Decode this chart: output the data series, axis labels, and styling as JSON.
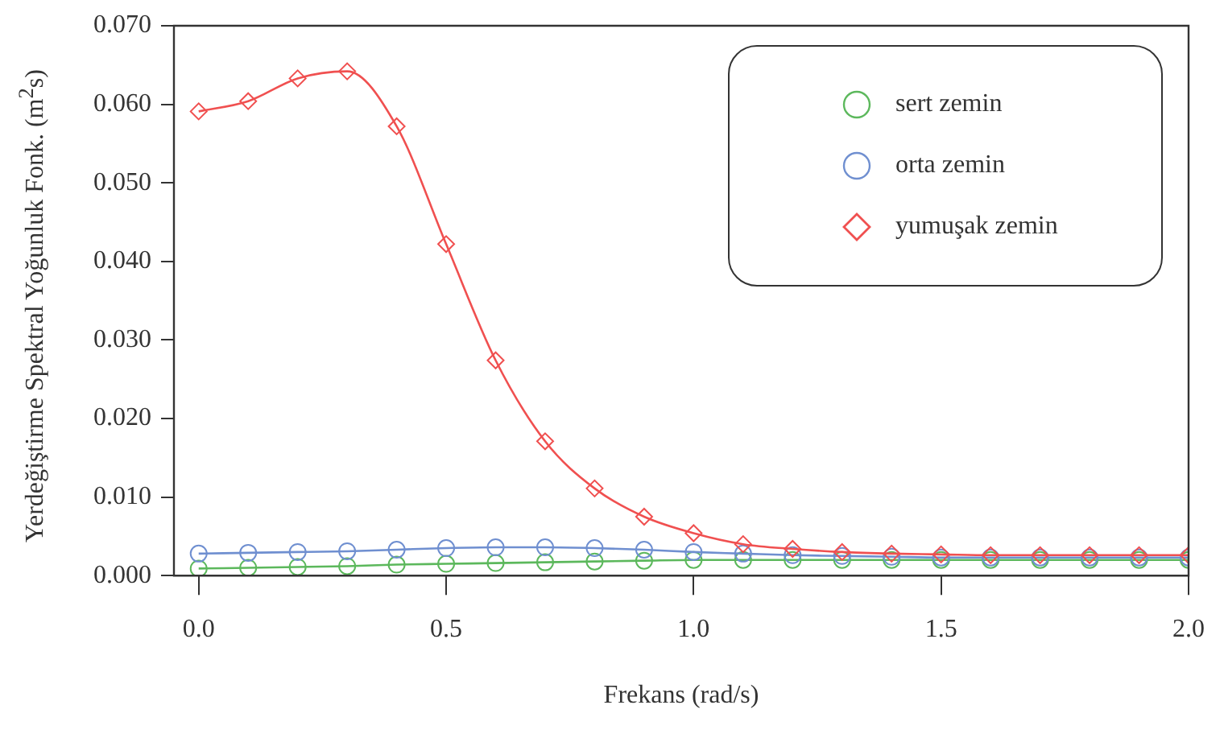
{
  "chart_data": {
    "type": "line",
    "xlabel": "Frekans (rad/s)",
    "ylabel": "Yerdeğiştirme Spektral Yoğunluk Fonk. (m$^{2}$s)",
    "x": [
      0,
      0.1,
      0.2,
      0.3,
      0.4,
      0.5,
      0.6,
      0.7,
      0.8,
      0.9,
      1.0,
      1.1,
      1.2,
      1.3,
      1.4,
      1.5,
      1.6,
      1.7,
      1.8,
      1.9,
      2.0
    ],
    "series": [
      {
        "name": "sert zemin",
        "color": "#5cb85c",
        "marker": "circle",
        "values": [
          0.0009,
          0.001,
          0.0011,
          0.0012,
          0.0014,
          0.0015,
          0.0016,
          0.0017,
          0.0018,
          0.0019,
          0.002,
          0.002,
          0.002,
          0.002,
          0.002,
          0.002,
          0.002,
          0.002,
          0.002,
          0.002,
          0.002
        ]
      },
      {
        "name": "orta zemin",
        "color": "#6f8fd0",
        "marker": "circle",
        "values": [
          0.0028,
          0.0029,
          0.003,
          0.0031,
          0.0033,
          0.0035,
          0.0036,
          0.0036,
          0.0035,
          0.0033,
          0.003,
          0.0028,
          0.0026,
          0.0025,
          0.0024,
          0.0023,
          0.0023,
          0.0023,
          0.0023,
          0.0023,
          0.0023
        ]
      },
      {
        "name": "yumuşak zemin",
        "color": "#f05050",
        "marker": "diamond",
        "values": [
          0.0591,
          0.0604,
          0.0633,
          0.0642,
          0.0572,
          0.0422,
          0.0274,
          0.0171,
          0.0111,
          0.0075,
          0.0054,
          0.004,
          0.0034,
          0.003,
          0.0028,
          0.0027,
          0.0026,
          0.0026,
          0.0026,
          0.0026,
          0.0026
        ]
      }
    ],
    "xlim": [
      -0.05,
      2.0
    ],
    "xticks": [
      {
        "value": 0,
        "label": "0.0"
      },
      {
        "value": 0.5,
        "label": "0.5"
      },
      {
        "value": 1,
        "label": "1.0"
      },
      {
        "value": 1.5,
        "label": "1.5"
      },
      {
        "value": 2,
        "label": "2.0"
      }
    ],
    "ylim": [
      0,
      0.07
    ],
    "yticks": [
      {
        "value": 0,
        "label": "0.000"
      },
      {
        "value": 0.01,
        "label": "0.010"
      },
      {
        "value": 0.02,
        "label": "0.020"
      },
      {
        "value": 0.03,
        "label": "0.030"
      },
      {
        "value": 0.04,
        "label": "0.040"
      },
      {
        "value": 0.05,
        "label": "0.050"
      },
      {
        "value": 0.06,
        "label": "0.060"
      },
      {
        "value": 0.07,
        "label": "0.070"
      }
    ],
    "grid": false,
    "legend": "top right",
    "line_style": "solid"
  }
}
